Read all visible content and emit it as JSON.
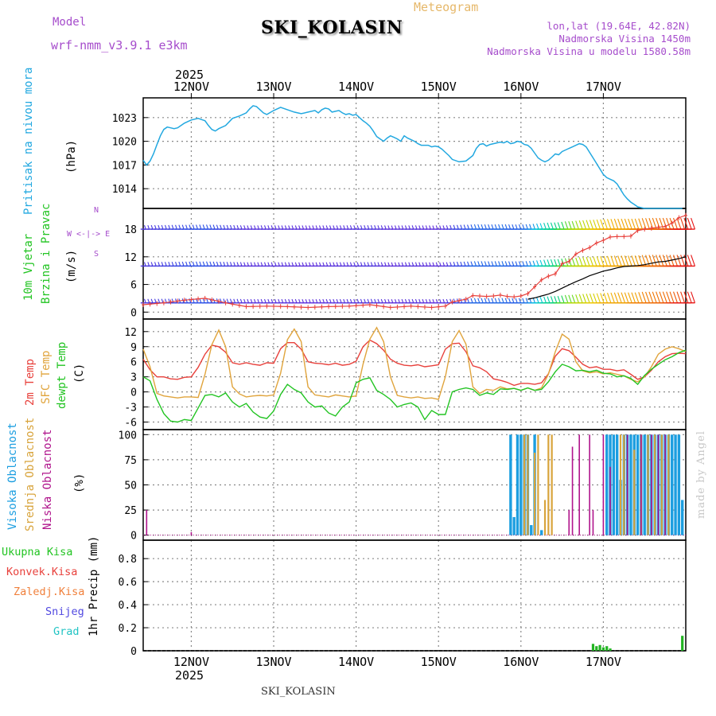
{
  "header": {
    "model_label": "Model",
    "model_name": "wrf-nmm_v3.9.1 e3km",
    "station": "SKI_KOLASIN",
    "product": "Meteogram",
    "lonlat": "lon,lat (19.64E, 42.82N)",
    "elevation": "Nadmorska Visina 1450m",
    "model_elevation": "Nadmorska Visina u modelu 1580.58m",
    "year_top": "2025",
    "year_bottom": "2025",
    "footer_station": "SKI_KOLASIN",
    "credit": "made by Angel"
  },
  "colors": {
    "pressure": "#22a8e0",
    "temp2m": "#e8413c",
    "sfc": "#e0a43c",
    "dew": "#22c422",
    "high_cloud": "#1c9ee0",
    "mid_cloud": "#d8a43c",
    "low_cloud": "#b0148c",
    "precip": "#22b422",
    "wind_calm": "#7a1fd6"
  },
  "chart_data": [
    {
      "type": "line",
      "name": "pressure",
      "ylabel": "Pritisak na nivou mora",
      "unit": "(hPa)",
      "categories": [
        "12NOV",
        "13NOV",
        "14NOV",
        "15NOV",
        "16NOV",
        "17NOV"
      ],
      "ylim": [
        1011.5,
        1025.5
      ],
      "yticks": [
        1014,
        1017,
        1020,
        1023
      ],
      "x": [
        0,
        1,
        2,
        3,
        4,
        5,
        6,
        7,
        8,
        9,
        10,
        11,
        12,
        14,
        16,
        18,
        19,
        20,
        21,
        22,
        24,
        26,
        28,
        30,
        31,
        32,
        33,
        34,
        35,
        36,
        38,
        40,
        42,
        44,
        46,
        48,
        50,
        51,
        52,
        53,
        54,
        55,
        56,
        57,
        58,
        59,
        60,
        61,
        62,
        63,
        64,
        65,
        66,
        67,
        68,
        69,
        70,
        71,
        72,
        73,
        74,
        75,
        76,
        77,
        78,
        79,
        80,
        81,
        82,
        83,
        84,
        85,
        86,
        87,
        88,
        89,
        90,
        92,
        94,
        96,
        97,
        98,
        99,
        100,
        101,
        102,
        103,
        104,
        105,
        106,
        107,
        108,
        109,
        110,
        111,
        112,
        113,
        114,
        115,
        116,
        117,
        118,
        119,
        120,
        121,
        122,
        123,
        124,
        125,
        126,
        127,
        128,
        129,
        130,
        131,
        132,
        133,
        134,
        135,
        136,
        137,
        138,
        139,
        140,
        141,
        142,
        143,
        144,
        145,
        146,
        147,
        148,
        149,
        150,
        151,
        152,
        153,
        154,
        155,
        156,
        157
      ],
      "values": [
        1017.6,
        1017.0,
        1017.5,
        1018.4,
        1019.6,
        1020.7,
        1021.5,
        1021.8,
        1021.7,
        1021.6,
        1021.7,
        1022.0,
        1022.3,
        1022.7,
        1022.9,
        1022.6,
        1022.0,
        1021.5,
        1021.3,
        1021.6,
        1022.0,
        1022.9,
        1023.2,
        1023.6,
        1024.1,
        1024.5,
        1024.4,
        1024.0,
        1023.6,
        1023.4,
        1023.9,
        1024.3,
        1024.0,
        1023.7,
        1023.5,
        1023.7,
        1023.9,
        1023.6,
        1024.0,
        1024.2,
        1024.1,
        1023.7,
        1023.8,
        1023.9,
        1023.6,
        1023.4,
        1023.5,
        1023.3,
        1023.4,
        1023.0,
        1022.6,
        1022.3,
        1021.9,
        1021.3,
        1020.6,
        1020.3,
        1020.0,
        1020.4,
        1020.7,
        1020.5,
        1020.3,
        1020.0,
        1020.7,
        1020.4,
        1020.2,
        1020.0,
        1019.7,
        1019.5,
        1019.5,
        1019.5,
        1019.3,
        1019.4,
        1019.3,
        1019.0,
        1018.6,
        1018.2,
        1017.7,
        1017.4,
        1017.5,
        1018.2,
        1019.1,
        1019.6,
        1019.7,
        1019.4,
        1019.6,
        1019.7,
        1019.8,
        1019.9,
        1019.8,
        1020.0,
        1019.7,
        1019.8,
        1020.0,
        1019.9,
        1019.6,
        1019.5,
        1019.1,
        1018.5,
        1017.9,
        1017.6,
        1017.4,
        1017.6,
        1018.0,
        1018.4,
        1018.3,
        1018.7,
        1018.9,
        1019.1,
        1019.3,
        1019.5,
        1019.7,
        1019.6,
        1019.3,
        1018.6,
        1017.9,
        1017.2,
        1016.5,
        1015.8,
        1015.4,
        1015.2,
        1015.0,
        1014.6,
        1013.9,
        1013.2,
        1012.7,
        1012.3,
        1012.0,
        1011.7,
        1011.6,
        1011.5,
        1011.5,
        1011.5,
        1011.5,
        1011.5,
        1011.5,
        1011.5,
        1011.5,
        1011.5,
        1011.5,
        1011.5,
        1011.5
      ]
    },
    {
      "type": "line",
      "name": "wind",
      "ylabel1": "10m Vjetar",
      "ylabel2": "Brzina i Pravac",
      "unit": "(m/s)",
      "compass": "N",
      "compass_row": "W <-|-> E",
      "compass_bottom": "S",
      "ylim": [
        -1.5,
        22.5
      ],
      "yticks": [
        0,
        6,
        12,
        18
      ],
      "barb_levels": [
        2,
        10,
        18
      ],
      "x": [
        0,
        6,
        12,
        18,
        24,
        30,
        36,
        42,
        48,
        54,
        60,
        66,
        72,
        78,
        84,
        88,
        90,
        94,
        96,
        100,
        102,
        104,
        106,
        108,
        110,
        112,
        114,
        116,
        118,
        120,
        122,
        124,
        126,
        128,
        130,
        132,
        134,
        136,
        138,
        140,
        142,
        144,
        146,
        148,
        150,
        152,
        154,
        156,
        158
      ],
      "speed": [
        1.6,
        2.0,
        2.6,
        3.0,
        2.0,
        1.2,
        1.3,
        1.2,
        1.0,
        1.2,
        1.3,
        1.6,
        1.0,
        1.3,
        1.0,
        1.3,
        2.2,
        2.8,
        3.6,
        3.4,
        3.5,
        3.7,
        3.4,
        3.3,
        3.5,
        4.0,
        5.5,
        7.0,
        7.8,
        8.3,
        10.5,
        11.0,
        12.6,
        13.4,
        14.0,
        15.0,
        15.6,
        16.3,
        16.4,
        16.4,
        16.5,
        17.7,
        18.0,
        18.2,
        18.4,
        18.6,
        19.3,
        20.5,
        21.0
      ],
      "gust_x": [
        112,
        114,
        116,
        118,
        120,
        122,
        124,
        126,
        128,
        130,
        132,
        134,
        136,
        138,
        140,
        142,
        144,
        146,
        148,
        150,
        152,
        154,
        156,
        158
      ],
      "gust": [
        2.8,
        3.1,
        3.5,
        3.9,
        4.5,
        5.2,
        5.9,
        6.6,
        7.2,
        7.9,
        8.4,
        8.9,
        9.2,
        9.6,
        9.9,
        10.0,
        10.1,
        10.3,
        10.6,
        10.9,
        11.0,
        11.3,
        11.6,
        12.0
      ]
    },
    {
      "type": "line",
      "name": "temperature",
      "ylabel1": "2m Temp",
      "ylabel2": "SFC Temp",
      "ylabel3": "dewpt Temp",
      "unit": "(C)",
      "ylim": [
        -7.5,
        14.5
      ],
      "yticks": [
        -6,
        -3,
        0,
        3,
        6,
        9,
        12
      ],
      "x": [
        0,
        2,
        4,
        6,
        8,
        10,
        12,
        14,
        16,
        18,
        20,
        22,
        24,
        26,
        28,
        30,
        32,
        34,
        36,
        38,
        40,
        42,
        44,
        46,
        48,
        50,
        52,
        54,
        56,
        58,
        60,
        62,
        64,
        66,
        68,
        70,
        72,
        74,
        76,
        78,
        80,
        82,
        84,
        86,
        88,
        90,
        92,
        94,
        96,
        98,
        100,
        102,
        104,
        106,
        108,
        110,
        112,
        114,
        116,
        118,
        120,
        122,
        124,
        126,
        128,
        130,
        132,
        134,
        136,
        138,
        140,
        142,
        144,
        146,
        148,
        150,
        152,
        154,
        156,
        158
      ],
      "series": [
        {
          "name": "2m Temp",
          "values": [
            6.5,
            4.4,
            3.0,
            3.0,
            2.6,
            2.5,
            2.9,
            3.0,
            4.9,
            7.5,
            9.3,
            9.0,
            7.9,
            5.8,
            5.5,
            5.8,
            5.5,
            5.3,
            5.8,
            5.7,
            8.6,
            9.8,
            9.8,
            8.5,
            6.0,
            5.7,
            5.6,
            5.4,
            5.7,
            5.3,
            5.5,
            6.1,
            9.0,
            10.3,
            9.6,
            8.3,
            6.5,
            5.7,
            5.3,
            5.2,
            5.4,
            5.0,
            5.2,
            5.4,
            8.5,
            9.6,
            9.7,
            8.0,
            5.2,
            4.8,
            4.0,
            2.6,
            2.3,
            1.9,
            1.3,
            1.7,
            1.7,
            1.5,
            1.8,
            3.6,
            7.1,
            8.6,
            8.2,
            6.9,
            5.5,
            4.8,
            5.0,
            4.5,
            4.5,
            4.2,
            4.4,
            3.5,
            2.5,
            3.0,
            4.3,
            6.0,
            7.0,
            7.6,
            7.7,
            7.6
          ]
        },
        {
          "name": "SFC Temp",
          "values": [
            8.5,
            5.0,
            -0.3,
            -0.8,
            -1.0,
            -1.2,
            -1.0,
            -1.0,
            -1.1,
            3.5,
            9.4,
            12.3,
            9.0,
            1.0,
            -0.4,
            -1.0,
            -0.8,
            -0.7,
            -0.8,
            -0.6,
            3.7,
            10.4,
            12.5,
            10.0,
            1.0,
            -0.6,
            -0.8,
            -1.0,
            -0.6,
            -0.8,
            -1.0,
            -0.8,
            5.5,
            10.5,
            12.8,
            10.0,
            3.0,
            -0.7,
            -1.0,
            -1.2,
            -1.0,
            -1.3,
            -1.2,
            -1.5,
            3.0,
            10.0,
            12.2,
            9.5,
            1.0,
            -0.3,
            0.5,
            0.3,
            1.0,
            0.6,
            0.7,
            0.3,
            0.8,
            0.3,
            0.8,
            3.5,
            8.0,
            11.5,
            10.5,
            6.0,
            4.2,
            3.8,
            4.0,
            3.6,
            3.8,
            3.5,
            3.2,
            2.5,
            2.0,
            3.0,
            5.0,
            7.5,
            8.5,
            9.0,
            8.6,
            8.0
          ]
        },
        {
          "name": "dewpt Temp",
          "values": [
            3.0,
            2.2,
            -1.5,
            -4.3,
            -5.8,
            -6.0,
            -5.5,
            -5.7,
            -3.2,
            -0.7,
            -0.5,
            -1.0,
            -0.2,
            -2.0,
            -3.0,
            -2.3,
            -4.0,
            -5.0,
            -5.3,
            -3.8,
            -0.5,
            1.5,
            0.5,
            -0.2,
            -2.0,
            -3.0,
            -2.8,
            -4.2,
            -4.8,
            -3.0,
            -2.0,
            1.8,
            2.5,
            2.8,
            0.3,
            -0.5,
            -1.5,
            -3.0,
            -2.5,
            -2.2,
            -3.0,
            -5.5,
            -3.7,
            -4.5,
            -4.5,
            0.0,
            0.5,
            0.8,
            0.5,
            -0.7,
            -0.2,
            -0.5,
            0.6,
            0.5,
            0.7,
            0.3,
            0.8,
            0.3,
            0.5,
            2.0,
            4.0,
            5.5,
            5.0,
            4.2,
            4.3,
            4.0,
            4.3,
            3.7,
            3.6,
            3.0,
            3.2,
            2.7,
            1.5,
            3.3,
            4.5,
            5.5,
            6.4,
            7.0,
            7.8,
            8.3
          ]
        }
      ]
    },
    {
      "type": "bar",
      "name": "clouds",
      "ylabel1": "Visoka Oblacnost",
      "ylabel2": "Srednja Oblacnost",
      "ylabel3": "Niska Oblacnost",
      "unit": "(%)",
      "ylim": [
        -5,
        105
      ],
      "yticks": [
        0,
        25,
        50,
        75,
        100
      ],
      "series": [
        {
          "name": "Visoka Oblacnost",
          "x": [
            107,
            108,
            109,
            110,
            111,
            112,
            113,
            114,
            116,
            135,
            136,
            137,
            138,
            139,
            140,
            141,
            142,
            143,
            144,
            145,
            146,
            147,
            148,
            149,
            150,
            151,
            152,
            153,
            154,
            155,
            156,
            157
          ],
          "values": [
            100,
            18,
            100,
            100,
            100,
            100,
            10,
            100,
            5,
            100,
            100,
            100,
            100,
            55,
            100,
            100,
            100,
            100,
            100,
            100,
            100,
            100,
            100,
            100,
            100,
            100,
            100,
            100,
            100,
            100,
            100,
            35
          ]
        },
        {
          "name": "Srednja Oblacnost",
          "x": [
            111,
            112,
            114,
            115,
            117,
            118,
            119,
            139,
            140,
            143,
            145,
            147,
            149,
            151,
            153
          ],
          "values": [
            100,
            100,
            82,
            100,
            35,
            100,
            100,
            100,
            100,
            85,
            100,
            100,
            100,
            100,
            100
          ]
        },
        {
          "name": "Niska Oblacnost",
          "x": [
            1,
            14,
            124,
            125,
            127,
            130,
            131,
            134,
            136,
            141,
            145,
            148,
            150,
            152
          ],
          "values": [
            25,
            3,
            25,
            88,
            100,
            100,
            25,
            100,
            68,
            100,
            100,
            100,
            100,
            100
          ]
        }
      ]
    },
    {
      "type": "bar",
      "name": "precipitation",
      "legend": [
        "Ukupna Kisa",
        "Konvek.Kisa",
        "Zaledj.Kisa",
        "Snijeg",
        "Grad"
      ],
      "ylabel": "1hr Precip (mm)",
      "ylim": [
        0,
        0.96
      ],
      "yticks": [
        0,
        0.2,
        0.4,
        0.6,
        0.8
      ],
      "ytick_labels": [
        "0",
        "0.2",
        "0.4",
        "0.6",
        "0.8"
      ],
      "x": [
        131,
        132,
        133,
        134,
        135,
        136,
        157
      ],
      "values": [
        0.06,
        0.04,
        0.05,
        0.03,
        0.04,
        0.02,
        0.13
      ]
    }
  ],
  "x_axis": {
    "days": [
      "12NOV",
      "13NOV",
      "14NOV",
      "15NOV",
      "16NOV",
      "17NOV"
    ],
    "day_index": [
      14,
      38,
      62,
      86,
      110,
      134
    ],
    "hours": 158
  }
}
